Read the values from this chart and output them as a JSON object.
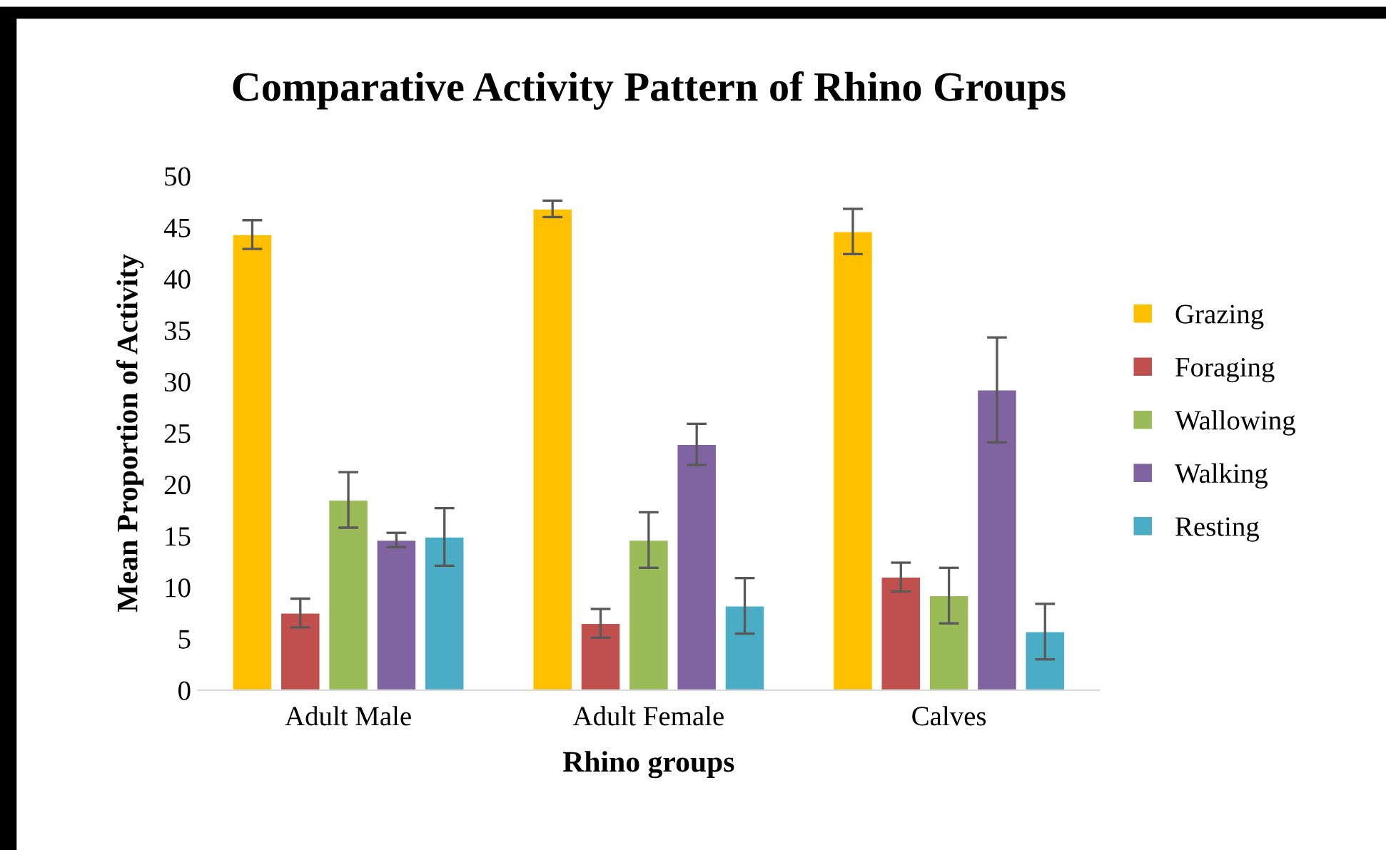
{
  "chart_data": {
    "type": "bar",
    "title": "Comparative Activity Pattern of Rhino Groups",
    "xlabel": "Rhino groups",
    "ylabel": "Mean Proportion of Activity",
    "categories": [
      "Adult Male",
      "Adult Female",
      "Calves"
    ],
    "series": [
      {
        "name": "Grazing",
        "color": "#ffc000",
        "values": [
          44.3,
          46.8,
          44.6
        ],
        "errors": [
          1.4,
          0.8,
          2.2
        ]
      },
      {
        "name": "Foraging",
        "color": "#c0504d",
        "values": [
          7.5,
          6.5,
          11.0
        ],
        "errors": [
          1.4,
          1.4,
          1.4
        ]
      },
      {
        "name": "Wallowing",
        "color": "#9bbb59",
        "values": [
          18.5,
          14.6,
          9.2
        ],
        "errors": [
          2.7,
          2.7,
          2.7
        ]
      },
      {
        "name": "Walking",
        "color": "#8064a2",
        "values": [
          14.6,
          23.9,
          29.2
        ],
        "errors": [
          0.7,
          2.0,
          5.1
        ]
      },
      {
        "name": "Resting",
        "color": "#4bacc6",
        "values": [
          14.9,
          8.2,
          5.7
        ],
        "errors": [
          2.8,
          2.7,
          2.7
        ]
      }
    ],
    "ylim": [
      0,
      50
    ],
    "yticks": [
      0,
      5,
      10,
      15,
      20,
      25,
      30,
      35,
      40,
      45,
      50
    ],
    "grid": false,
    "legend": "right"
  }
}
